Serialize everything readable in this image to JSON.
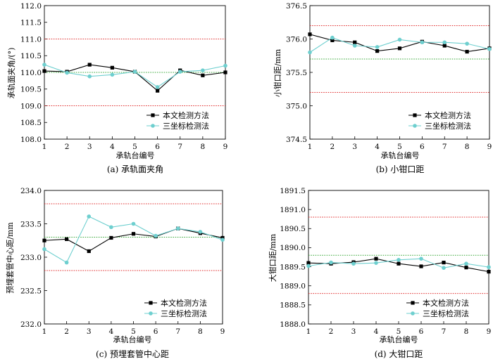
{
  "colors": {
    "method_line": "#000000",
    "cmm_line": "#6ecfcf",
    "limit_line": "#e03030",
    "nominal_line": "#3aa83a"
  },
  "chart_data": [
    {
      "type": "line",
      "caption": "(a)  承轨面夹角",
      "xlabel": "承轨台编号",
      "ylabel": "承轨面夹角/(°)",
      "x": [
        1,
        2,
        3,
        4,
        5,
        6,
        7,
        8,
        9
      ],
      "xlim": [
        1,
        9
      ],
      "ylim": [
        108.0,
        112.0
      ],
      "yticks": [
        "108.0",
        "108.5",
        "109.0",
        "109.5",
        "110.0",
        "110.5",
        "111.0",
        "111.5",
        "112.0"
      ],
      "series": [
        {
          "name": "本文检测方法",
          "marker": "square",
          "values": [
            110.04,
            110.02,
            110.23,
            110.14,
            110.02,
            109.45,
            110.06,
            109.91,
            110.0
          ]
        },
        {
          "name": "三坐标检测法",
          "marker": "circle",
          "values": [
            110.23,
            109.99,
            109.88,
            109.93,
            110.02,
            109.56,
            110.02,
            110.06,
            110.2
          ]
        }
      ],
      "reference_lines": [
        {
          "kind": "limit",
          "value": 111.0
        },
        {
          "kind": "limit",
          "value": 109.0
        },
        {
          "kind": "nominal",
          "value": 110.0
        }
      ],
      "legend_position": "bottom-right"
    },
    {
      "type": "line",
      "caption": "(b)  小钳口距",
      "xlabel": "承轨台编号",
      "ylabel": "小钳口距/mm",
      "x": [
        1,
        2,
        3,
        4,
        5,
        6,
        7,
        8,
        9
      ],
      "xlim": [
        1,
        9
      ],
      "ylim": [
        374.5,
        376.5
      ],
      "yticks": [
        "374.5",
        "375.0",
        "375.5",
        "376.0",
        "376.5"
      ],
      "series": [
        {
          "name": "本文检测方法",
          "marker": "square",
          "values": [
            376.07,
            375.98,
            375.95,
            375.82,
            375.86,
            375.96,
            375.9,
            375.81,
            375.86
          ]
        },
        {
          "name": "三坐标检测法",
          "marker": "circle",
          "values": [
            375.8,
            376.02,
            375.9,
            375.88,
            375.99,
            375.95,
            375.95,
            375.93,
            375.85
          ]
        }
      ],
      "reference_lines": [
        {
          "kind": "limit",
          "value": 376.2
        },
        {
          "kind": "limit",
          "value": 375.2
        },
        {
          "kind": "nominal",
          "value": 375.7
        }
      ],
      "legend_position": "bottom-right"
    },
    {
      "type": "line",
      "caption": "(c)  预埋套管中心距",
      "xlabel": "承轨台编号",
      "ylabel": "预埋套管中心距/mm",
      "x": [
        1,
        2,
        3,
        4,
        5,
        6,
        7,
        8,
        9
      ],
      "xlim": [
        1,
        9
      ],
      "ylim": [
        232.0,
        234.0
      ],
      "yticks": [
        "232.0",
        "232.5",
        "233.0",
        "233.5",
        "234.0"
      ],
      "series": [
        {
          "name": "本文检测方法",
          "marker": "square",
          "values": [
            233.25,
            233.27,
            233.09,
            233.29,
            233.35,
            233.31,
            233.43,
            233.36,
            233.29
          ]
        },
        {
          "name": "三坐标检测法",
          "marker": "circle",
          "values": [
            233.12,
            232.92,
            233.61,
            233.45,
            233.5,
            233.32,
            233.43,
            233.38,
            233.26
          ]
        }
      ],
      "reference_lines": [
        {
          "kind": "limit",
          "value": 233.8
        },
        {
          "kind": "limit",
          "value": 232.8
        },
        {
          "kind": "nominal",
          "value": 233.3
        }
      ],
      "legend_position": "bottom-right"
    },
    {
      "type": "line",
      "caption": "(d)  大钳口距",
      "xlabel": "承轨台编号",
      "ylabel": "大钳口距/mm",
      "x": [
        1,
        2,
        3,
        4,
        5,
        6,
        7,
        8,
        9
      ],
      "xlim": [
        1,
        9
      ],
      "ylim": [
        1888.0,
        1891.5
      ],
      "yticks": [
        "1888.0",
        "1888.5",
        "1889.0",
        "1889.5",
        "1890.0",
        "1890.5",
        "1891.0",
        "1891.5"
      ],
      "series": [
        {
          "name": "本文检测方法",
          "marker": "square",
          "values": [
            1889.6,
            1889.58,
            1889.62,
            1889.71,
            1889.58,
            1889.51,
            1889.61,
            1889.48,
            1889.37
          ]
        },
        {
          "name": "三坐标检测法",
          "marker": "circle",
          "values": [
            1889.52,
            1889.61,
            1889.58,
            1889.6,
            1889.68,
            1889.71,
            1889.47,
            1889.58,
            1889.49
          ]
        }
      ],
      "reference_lines": [
        {
          "kind": "limit",
          "value": 1890.8
        },
        {
          "kind": "limit",
          "value": 1888.8
        },
        {
          "kind": "nominal",
          "value": 1889.8
        }
      ],
      "legend_position": "bottom-right"
    }
  ]
}
